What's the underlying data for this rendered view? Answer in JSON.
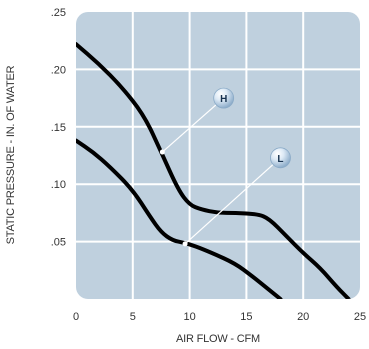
{
  "chart_data": {
    "type": "line",
    "title": "",
    "xlabel": "AIR FLOW - CFM",
    "ylabel": "STATIC PRESSURE - IN. OF WATER",
    "xlim": [
      0,
      25
    ],
    "ylim": [
      0,
      0.25
    ],
    "x_ticks": [
      "0",
      "5",
      "10",
      "15",
      "20",
      "25"
    ],
    "y_ticks": [
      ".05",
      ".10",
      ".15",
      ".20",
      ".25"
    ],
    "grid": true,
    "colors": {
      "plot_background": "#bfd0de",
      "grid": "#ffffff",
      "curve": "#000000",
      "marker_fill": "#d6e5f2",
      "marker_text": "#17324f",
      "text": "#333333"
    },
    "series": [
      {
        "name": "H",
        "points": [
          [
            0.0,
            0.222
          ],
          [
            2.0,
            0.205
          ],
          [
            4.0,
            0.185
          ],
          [
            6.0,
            0.16
          ],
          [
            7.5,
            0.128
          ],
          [
            9.0,
            0.095
          ],
          [
            10.0,
            0.082
          ],
          [
            11.0,
            0.078
          ],
          [
            12.5,
            0.075
          ],
          [
            14.0,
            0.075
          ],
          [
            16.0,
            0.074
          ],
          [
            17.0,
            0.07
          ],
          [
            18.5,
            0.055
          ],
          [
            20.0,
            0.04
          ],
          [
            21.5,
            0.027
          ],
          [
            23.0,
            0.01
          ],
          [
            24.0,
            0.0
          ]
        ],
        "callout": {
          "label": "H",
          "anchor": [
            7.6,
            0.128
          ],
          "label_at": [
            13.0,
            0.175
          ]
        }
      },
      {
        "name": "L",
        "points": [
          [
            0.0,
            0.138
          ],
          [
            1.5,
            0.128
          ],
          [
            3.0,
            0.115
          ],
          [
            5.0,
            0.095
          ],
          [
            6.5,
            0.072
          ],
          [
            7.5,
            0.058
          ],
          [
            8.5,
            0.051
          ],
          [
            9.5,
            0.049
          ],
          [
            10.5,
            0.046
          ],
          [
            12.0,
            0.04
          ],
          [
            14.0,
            0.031
          ],
          [
            15.5,
            0.02
          ],
          [
            17.0,
            0.008
          ],
          [
            18.0,
            0.0
          ]
        ],
        "callout": {
          "label": "L",
          "anchor": [
            9.6,
            0.048
          ],
          "label_at": [
            18.0,
            0.123
          ]
        }
      }
    ]
  }
}
